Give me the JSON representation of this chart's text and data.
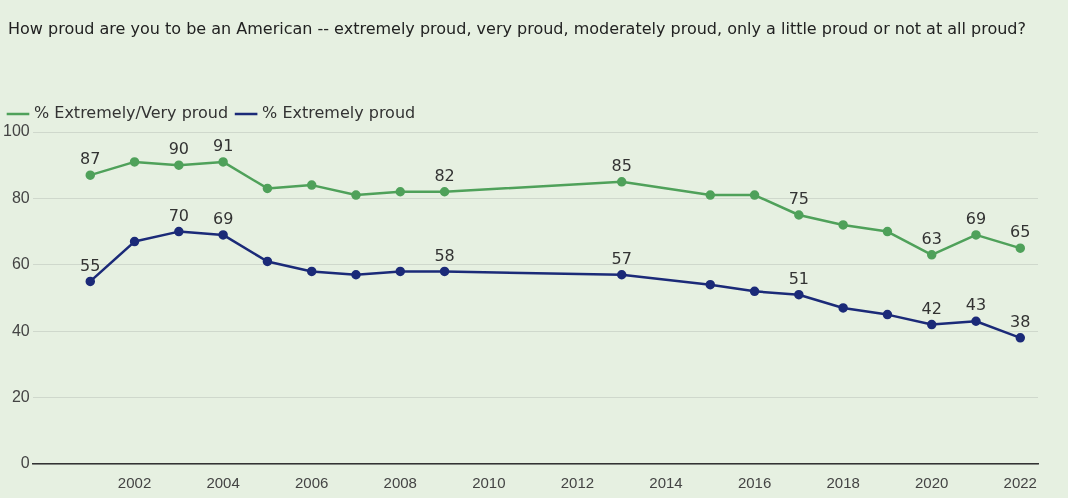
{
  "chart_data": {
    "type": "line",
    "title": "How proud are you to be an American -- extremely proud, very proud, moderately proud, only a little proud or not at all proud?",
    "x": [
      2001,
      2002,
      2003,
      2004,
      2005,
      2006,
      2007,
      2008,
      2009,
      2013,
      2015,
      2016,
      2017,
      2018,
      2019,
      2020,
      2021,
      2022
    ],
    "series": [
      {
        "name": "% Extremely/Very proud",
        "color": "#4fa15a",
        "values": [
          87,
          91,
          90,
          91,
          83,
          84,
          81,
          82,
          82,
          85,
          81,
          81,
          75,
          72,
          70,
          63,
          69,
          65
        ],
        "value_labels": [
          "87",
          null,
          "90",
          "91",
          null,
          null,
          null,
          null,
          "82",
          "85",
          null,
          null,
          "75",
          null,
          null,
          "63",
          "69",
          "65"
        ]
      },
      {
        "name": "% Extremely proud",
        "color": "#1b2a78",
        "values": [
          55,
          67,
          70,
          69,
          61,
          58,
          57,
          58,
          58,
          57,
          54,
          52,
          51,
          47,
          45,
          42,
          43,
          38
        ],
        "value_labels": [
          "55",
          null,
          "70",
          "69",
          null,
          null,
          null,
          null,
          "58",
          "57",
          null,
          null,
          "51",
          null,
          null,
          "42",
          "43",
          "38"
        ]
      }
    ],
    "xlim": [
      1999.7,
      2022.4
    ],
    "xticks": [
      2002,
      2004,
      2006,
      2008,
      2010,
      2012,
      2014,
      2016,
      2018,
      2020,
      2022
    ],
    "ylim": [
      0,
      100
    ],
    "yticks": [
      0,
      20,
      40,
      60,
      80,
      100
    ],
    "grid": "y",
    "legend": "top left",
    "marker": "circle",
    "line_style": "solid"
  }
}
